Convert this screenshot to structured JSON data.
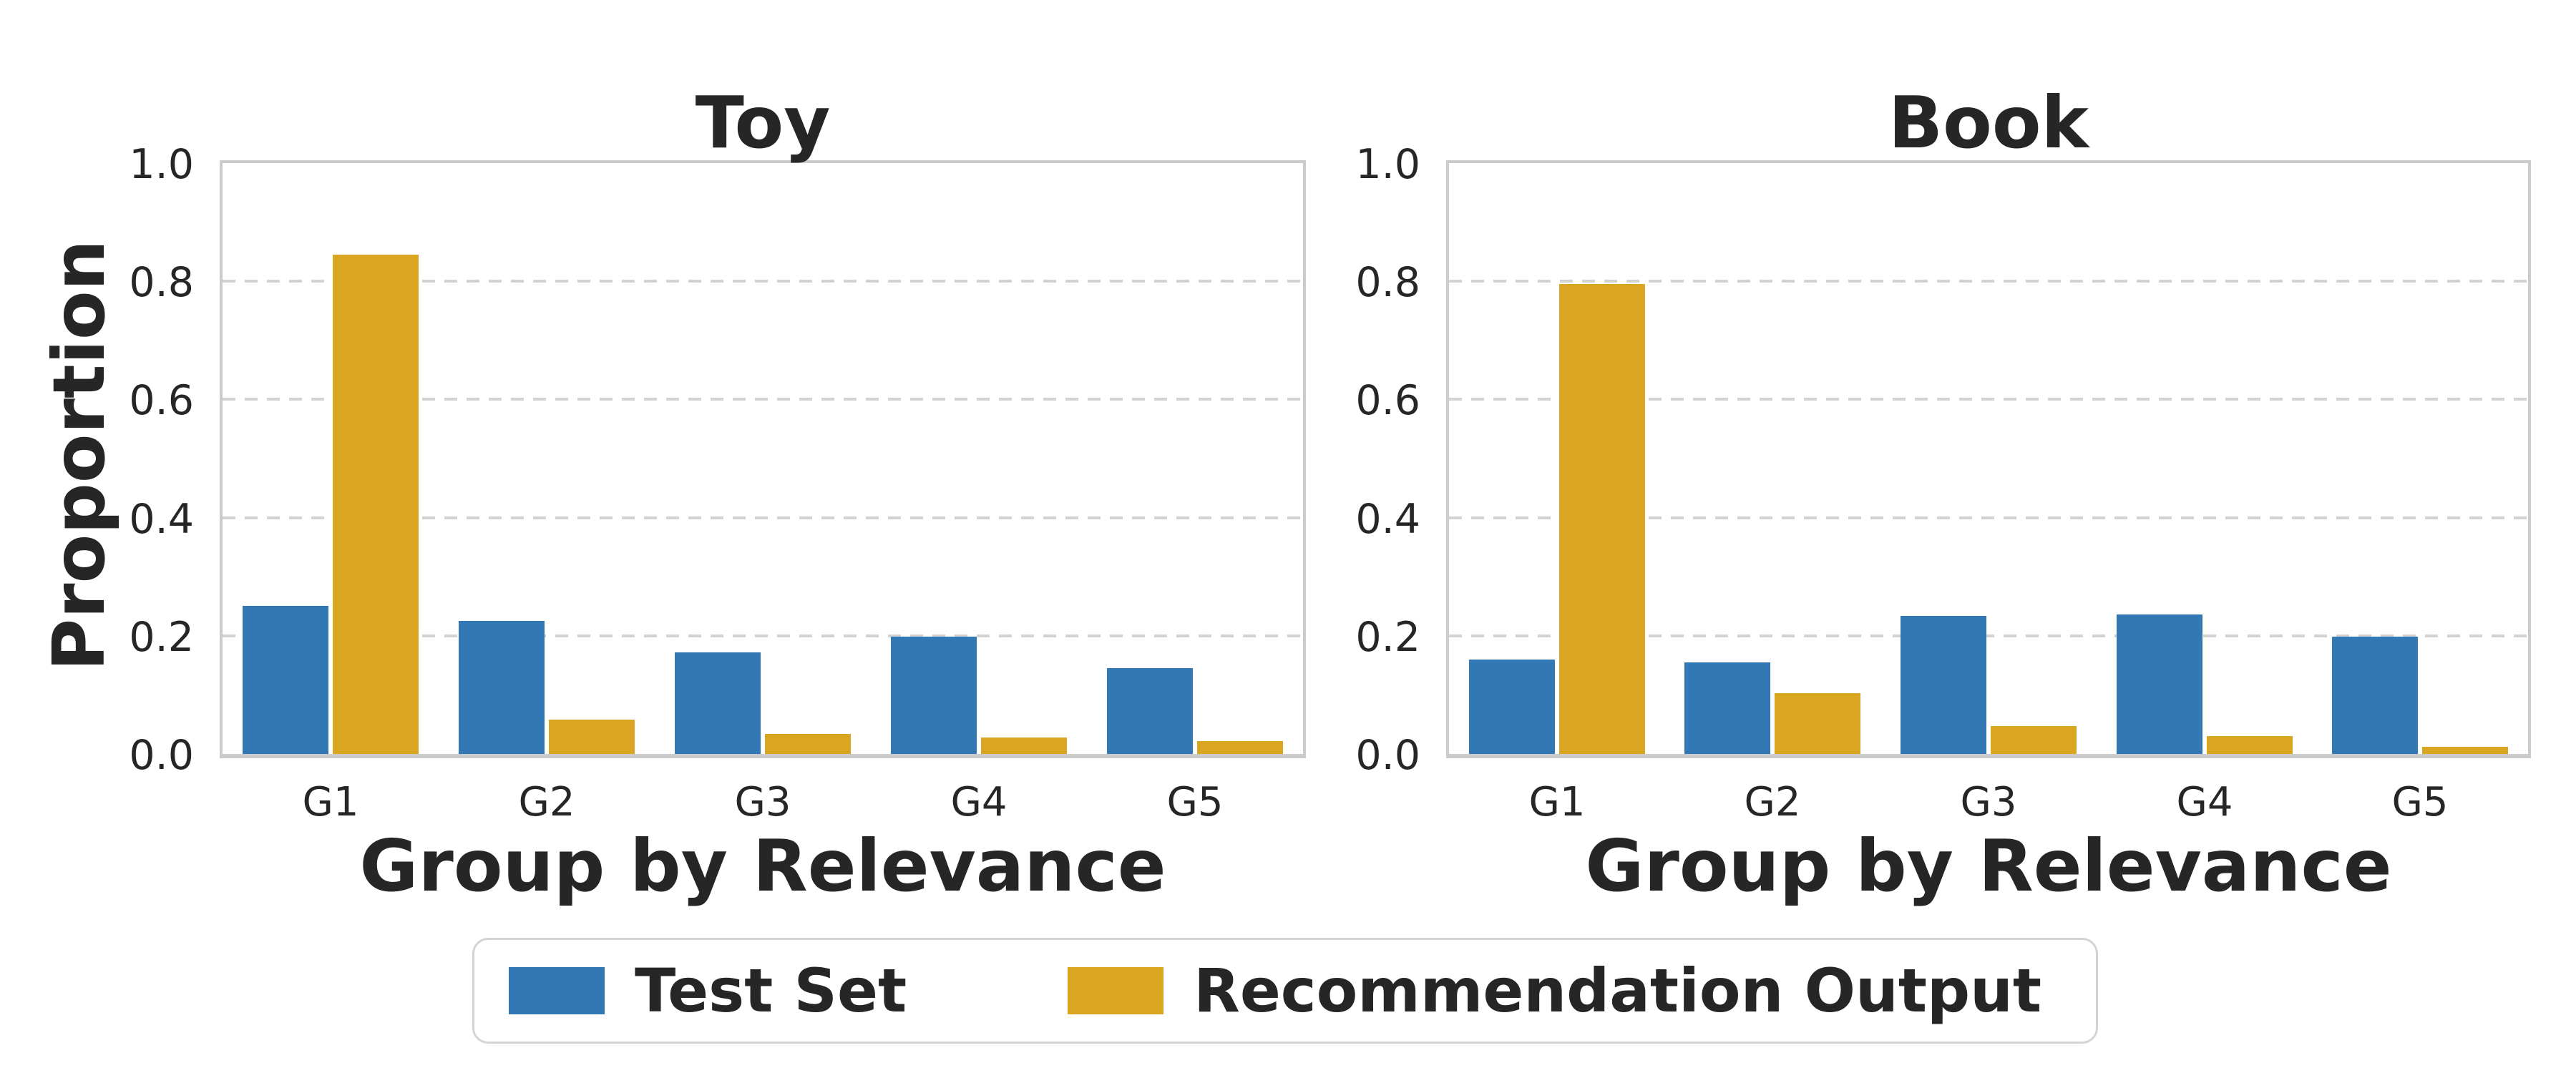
{
  "figure": {
    "ylabel": "Proportion",
    "background": "#ffffff",
    "text_color": "#262626",
    "spine_color": "#cbcbcb",
    "grid_color": "#d2d2d2"
  },
  "legend": {
    "items": [
      {
        "label": "Test Set",
        "color": "#3178b4"
      },
      {
        "label": "Recommendation Output",
        "color": "#daa520"
      }
    ]
  },
  "chart_data": [
    {
      "type": "bar",
      "title": "Toy",
      "xlabel": "Group by Relevance",
      "ylabel": "Proportion",
      "categories": [
        "G1",
        "G2",
        "G3",
        "G4",
        "G5"
      ],
      "series": [
        {
          "name": "Test Set",
          "color": "#3178b4",
          "values": [
            0.25,
            0.225,
            0.172,
            0.199,
            0.145
          ]
        },
        {
          "name": "Recommendation Output",
          "color": "#daa520",
          "values": [
            0.845,
            0.058,
            0.034,
            0.028,
            0.022
          ]
        }
      ],
      "ylim": [
        0,
        1.0
      ],
      "yticks": [
        "0.0",
        "0.2",
        "0.4",
        "0.6",
        "0.8",
        "1.0"
      ],
      "grid": "horizontal-dashed",
      "legend_position": "lower-center-of-figure"
    },
    {
      "type": "bar",
      "title": "Book",
      "xlabel": "Group by Relevance",
      "ylabel": "Proportion",
      "categories": [
        "G1",
        "G2",
        "G3",
        "G4",
        "G5"
      ],
      "series": [
        {
          "name": "Test Set",
          "color": "#3178b4",
          "values": [
            0.16,
            0.155,
            0.234,
            0.236,
            0.199
          ]
        },
        {
          "name": "Recommendation Output",
          "color": "#daa520",
          "values": [
            0.795,
            0.103,
            0.047,
            0.03,
            0.012
          ]
        }
      ],
      "ylim": [
        0,
        1.0
      ],
      "yticks": [
        "0.0",
        "0.2",
        "0.4",
        "0.6",
        "0.8",
        "1.0"
      ],
      "grid": "horizontal-dashed",
      "legend_position": "lower-center-of-figure"
    }
  ]
}
